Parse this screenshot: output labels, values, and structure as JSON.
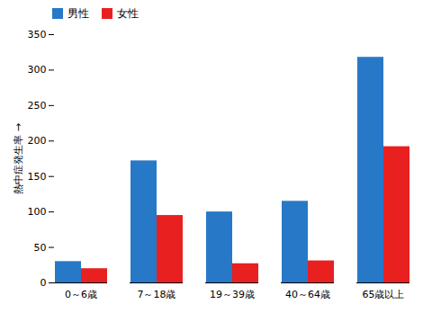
{
  "chart_data": {
    "type": "bar",
    "categories": [
      "0～6歳",
      "7～18歳",
      "19～39歳",
      "40～64歳",
      "65歳以上"
    ],
    "series": [
      {
        "name": "男性",
        "color": "#2878c8",
        "values": [
          30,
          172,
          100,
          115,
          318
        ]
      },
      {
        "name": "女性",
        "color": "#e82020",
        "values": [
          20,
          95,
          27,
          31,
          192
        ]
      }
    ],
    "ylabel": "熱中症発生率",
    "ylim": [
      0,
      350
    ],
    "yticks": [
      0,
      50,
      100,
      150,
      200,
      250,
      300,
      350
    ],
    "grid": false,
    "legend": "upper left"
  }
}
